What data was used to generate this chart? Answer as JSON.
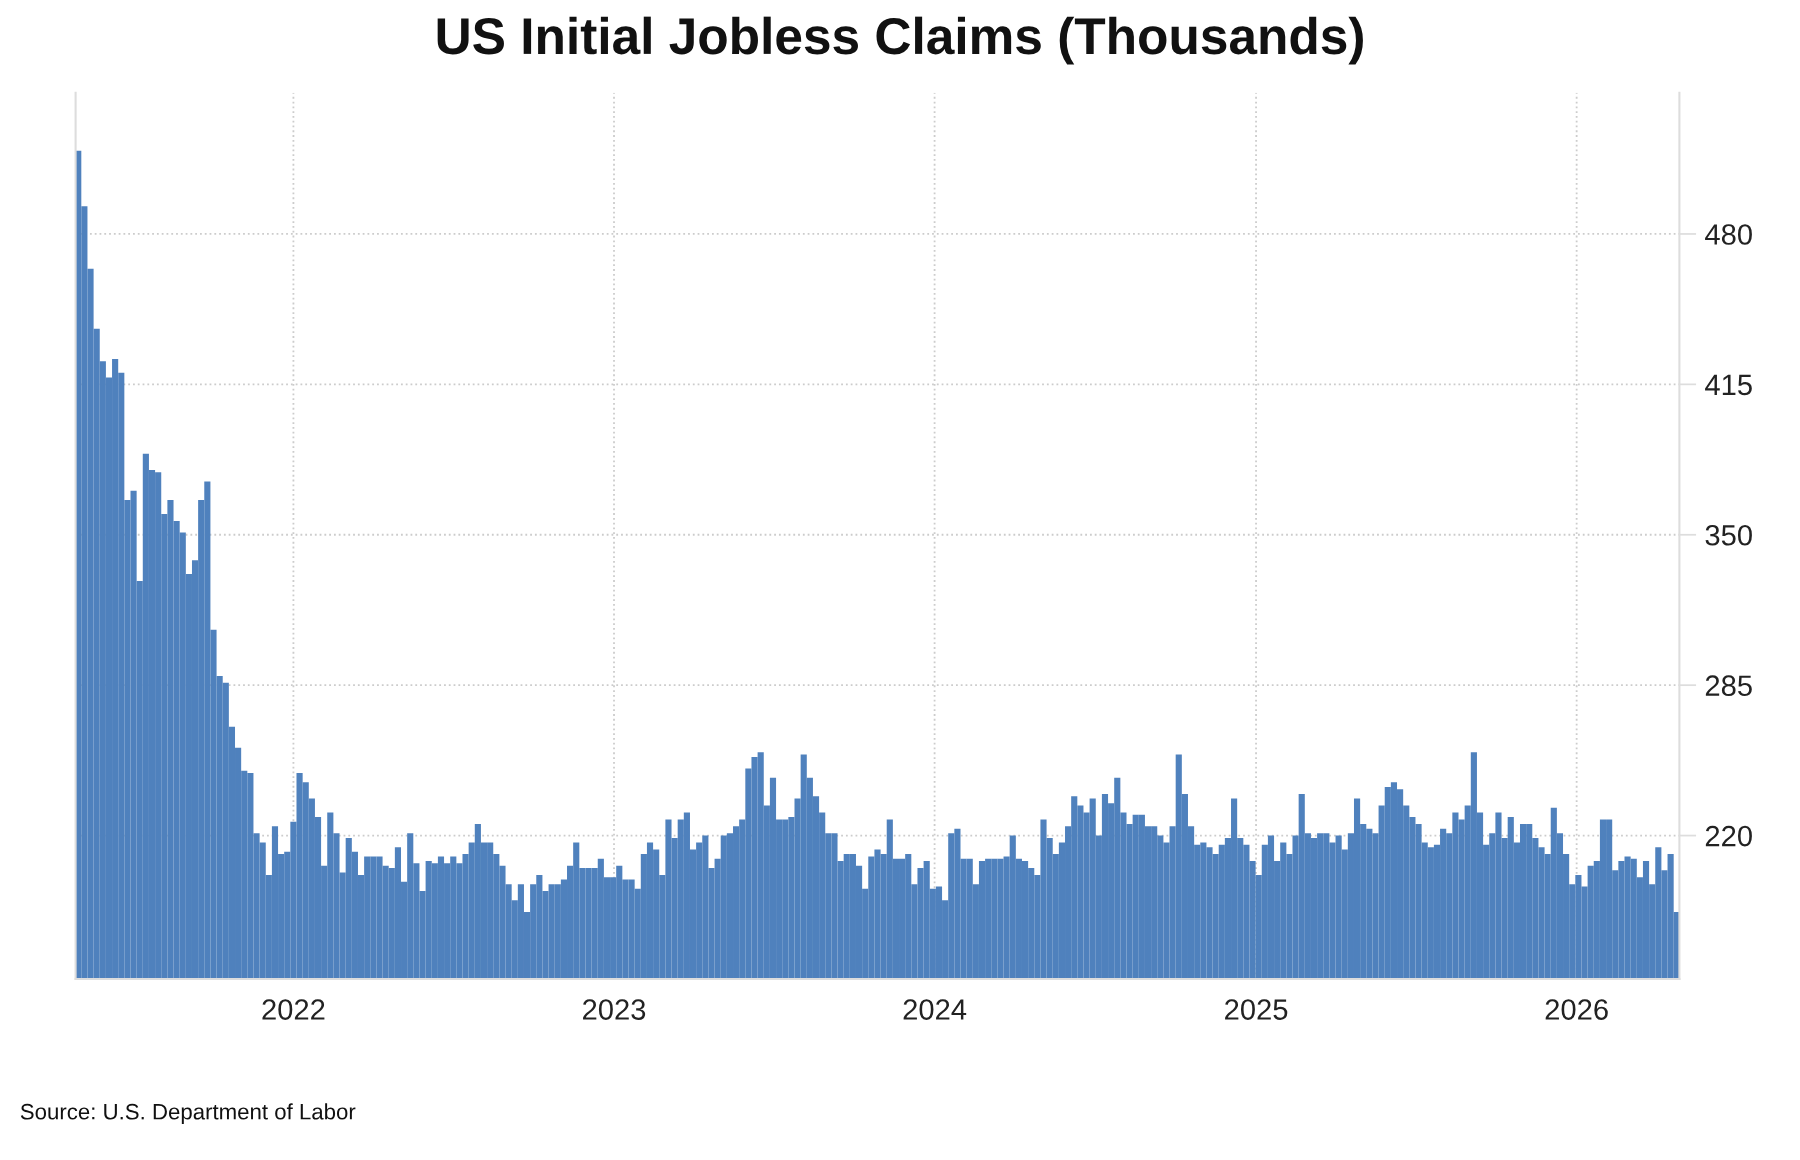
{
  "chart_data": {
    "type": "bar",
    "title": "US Initial Jobless Claims (Thousands)",
    "x": [
      "2021-05-01",
      "2021-05-08",
      "2021-05-15",
      "2021-05-22",
      "2021-05-29",
      "2021-06-05",
      "2021-06-12",
      "2021-06-19",
      "2021-06-26",
      "2021-07-03",
      "2021-07-10",
      "2021-07-17",
      "2021-07-24",
      "2021-07-31",
      "2021-08-07",
      "2021-08-14",
      "2021-08-21",
      "2021-08-28",
      "2021-09-04",
      "2021-09-11",
      "2021-09-18",
      "2021-09-25",
      "2021-10-02",
      "2021-10-09",
      "2021-10-16",
      "2021-10-23",
      "2021-10-30",
      "2021-11-06",
      "2021-11-13",
      "2021-11-20",
      "2021-11-27",
      "2021-12-04",
      "2021-12-11",
      "2021-12-18",
      "2021-12-25",
      "2022-01-01",
      "2022-01-08",
      "2022-01-15",
      "2022-01-22",
      "2022-01-29",
      "2022-02-05",
      "2022-02-12",
      "2022-02-19",
      "2022-02-26",
      "2022-03-05",
      "2022-03-12",
      "2022-03-19",
      "2022-03-26",
      "2022-04-02",
      "2022-04-09",
      "2022-04-16",
      "2022-04-23",
      "2022-04-30",
      "2022-05-07",
      "2022-05-14",
      "2022-05-21",
      "2022-05-28",
      "2022-06-04",
      "2022-06-11",
      "2022-06-18",
      "2022-06-25",
      "2022-07-02",
      "2022-07-09",
      "2022-07-16",
      "2022-07-23",
      "2022-07-30",
      "2022-08-06",
      "2022-08-13",
      "2022-08-20",
      "2022-08-27",
      "2022-09-03",
      "2022-09-10",
      "2022-09-17",
      "2022-09-24",
      "2022-10-01",
      "2022-10-08",
      "2022-10-15",
      "2022-10-22",
      "2022-10-29",
      "2022-11-05",
      "2022-11-12",
      "2022-11-19",
      "2022-11-26",
      "2022-12-03",
      "2022-12-10",
      "2022-12-17",
      "2022-12-24",
      "2022-12-31",
      "2023-01-07",
      "2023-01-14",
      "2023-01-21",
      "2023-01-28",
      "2023-02-04",
      "2023-02-11",
      "2023-02-18",
      "2023-02-25",
      "2023-03-04",
      "2023-03-11",
      "2023-03-18",
      "2023-03-25",
      "2023-04-01",
      "2023-04-08",
      "2023-04-15",
      "2023-04-22",
      "2023-04-29",
      "2023-05-06",
      "2023-05-13",
      "2023-05-20",
      "2023-05-27",
      "2023-06-03",
      "2023-06-10",
      "2023-06-17",
      "2023-06-24",
      "2023-07-01",
      "2023-07-08",
      "2023-07-15",
      "2023-07-22",
      "2023-07-29",
      "2023-08-05",
      "2023-08-12",
      "2023-08-19",
      "2023-08-26",
      "2023-09-02",
      "2023-09-09",
      "2023-09-16",
      "2023-09-23",
      "2023-09-30",
      "2023-10-07",
      "2023-10-14",
      "2023-10-21",
      "2023-10-28",
      "2023-11-04",
      "2023-11-11",
      "2023-11-18",
      "2023-11-25",
      "2023-12-02",
      "2023-12-09",
      "2023-12-16",
      "2023-12-23",
      "2023-12-30",
      "2024-01-06",
      "2024-01-13",
      "2024-01-20",
      "2024-01-27",
      "2024-02-03",
      "2024-02-10",
      "2024-02-17",
      "2024-02-24",
      "2024-03-02",
      "2024-03-09",
      "2024-03-16",
      "2024-03-23",
      "2024-03-30",
      "2024-04-06",
      "2024-04-13",
      "2024-04-20",
      "2024-04-27",
      "2024-05-04",
      "2024-05-11",
      "2024-05-18",
      "2024-05-25",
      "2024-06-01",
      "2024-06-08",
      "2024-06-15",
      "2024-06-22",
      "2024-06-29",
      "2024-07-06",
      "2024-07-13",
      "2024-07-20",
      "2024-07-27",
      "2024-08-03",
      "2024-08-10",
      "2024-08-17",
      "2024-08-24",
      "2024-08-31",
      "2024-09-07",
      "2024-09-14",
      "2024-09-21",
      "2024-09-28",
      "2024-10-05",
      "2024-10-12",
      "2024-10-19",
      "2024-10-26",
      "2024-11-02",
      "2024-11-09",
      "2024-11-16",
      "2024-11-23",
      "2024-11-30",
      "2024-12-07",
      "2024-12-14",
      "2024-12-21",
      "2024-12-28",
      "2025-01-04",
      "2025-01-11",
      "2025-01-18",
      "2025-01-25",
      "2025-02-01",
      "2025-02-08",
      "2025-02-15",
      "2025-02-22",
      "2025-03-01",
      "2025-03-08",
      "2025-03-15",
      "2025-03-22",
      "2025-03-29",
      "2025-04-05",
      "2025-04-12",
      "2025-04-19",
      "2025-04-26",
      "2025-05-03",
      "2025-05-10",
      "2025-05-17",
      "2025-05-24",
      "2025-05-31",
      "2025-06-07",
      "2025-06-14",
      "2025-06-21",
      "2025-06-28",
      "2025-07-05",
      "2025-07-12",
      "2025-07-19",
      "2025-07-26",
      "2025-08-02",
      "2025-08-09",
      "2025-08-16",
      "2025-08-23",
      "2025-08-30",
      "2025-09-06",
      "2025-09-13",
      "2025-09-20",
      "2025-09-27",
      "2025-10-04",
      "2025-10-11",
      "2025-10-18",
      "2025-10-25",
      "2025-11-01",
      "2025-11-08",
      "2025-11-15",
      "2025-11-22",
      "2025-11-29",
      "2025-12-06",
      "2025-12-13",
      "2025-12-20",
      "2025-12-27",
      "2026-01-03",
      "2026-01-10",
      "2026-01-17",
      "2026-01-24",
      "2026-01-31",
      "2026-02-07",
      "2026-02-14",
      "2026-02-21",
      "2026-02-28",
      "2026-03-07",
      "2026-03-14",
      "2026-03-21",
      "2026-03-28",
      "2026-04-04",
      "2026-04-11",
      "2026-04-18",
      "2026-04-25"
    ],
    "values": [
      516,
      492,
      465,
      439,
      425,
      418,
      426,
      420,
      365,
      369,
      330,
      385,
      378,
      377,
      359,
      365,
      356,
      351,
      333,
      339,
      365,
      373,
      309,
      289,
      286,
      267,
      258,
      248,
      247,
      221,
      217,
      203,
      224,
      212,
      213,
      226,
      247,
      243,
      236,
      228,
      207,
      230,
      221,
      204,
      219,
      213,
      203,
      211,
      211,
      211,
      207,
      206,
      215,
      200,
      221,
      208,
      196,
      209,
      208,
      211,
      208,
      211,
      208,
      212,
      217,
      225,
      217,
      217,
      212,
      207,
      199,
      192,
      199,
      187,
      199,
      203,
      196,
      199,
      199,
      201,
      207,
      217,
      206,
      206,
      206,
      210,
      202,
      202,
      207,
      201,
      201,
      197,
      212,
      217,
      214,
      203,
      227,
      219,
      227,
      230,
      214,
      217,
      220,
      206,
      210,
      220,
      221,
      224,
      227,
      249,
      254,
      256,
      233,
      245,
      227,
      227,
      228,
      236,
      255,
      245,
      237,
      230,
      221,
      221,
      209,
      212,
      212,
      207,
      197,
      211,
      214,
      212,
      227,
      210,
      210,
      212,
      199,
      206,
      209,
      197,
      198,
      192,
      221,
      223,
      210,
      210,
      199,
      209,
      210,
      210,
      210,
      211,
      220,
      210,
      209,
      206,
      203,
      227,
      219,
      212,
      217,
      224,
      237,
      233,
      230,
      236,
      220,
      238,
      234,
      245,
      230,
      225,
      229,
      229,
      224,
      224,
      220,
      217,
      224,
      255,
      238,
      224,
      216,
      217,
      215,
      212,
      216,
      219,
      236,
      219,
      216,
      209,
      203,
      216,
      220,
      209,
      217,
      212,
      220,
      238,
      221,
      219,
      221,
      221,
      217,
      220,
      214,
      221,
      236,
      225,
      223,
      221,
      233,
      241,
      243,
      240,
      233,
      228,
      225,
      217,
      215,
      216,
      223,
      221,
      230,
      227,
      233,
      256,
      230,
      216,
      221,
      230,
      219,
      228,
      217,
      225,
      225,
      219,
      215,
      212,
      232,
      221,
      212,
      199,
      203,
      198,
      207,
      209,
      227,
      227,
      205,
      209,
      211,
      210,
      202,
      209,
      199,
      215,
      205,
      212,
      187
    ],
    "color": "#4f81bd",
    "xlim": [
      "2021-04-28",
      "2026-04-28"
    ],
    "xticks": [
      {
        "value": "2022-01-01",
        "label": "2022"
      },
      {
        "value": "2023-01-01",
        "label": "2023"
      },
      {
        "value": "2024-01-01",
        "label": "2024"
      },
      {
        "value": "2025-01-01",
        "label": "2025"
      },
      {
        "value": "2026-01-01",
        "label": "2026"
      }
    ],
    "ylim": [
      158,
      541
    ],
    "yticks": [
      220,
      285,
      350,
      415,
      480
    ],
    "grid": true,
    "annotations": [
      "Source: U.S. Department of Labor"
    ]
  }
}
